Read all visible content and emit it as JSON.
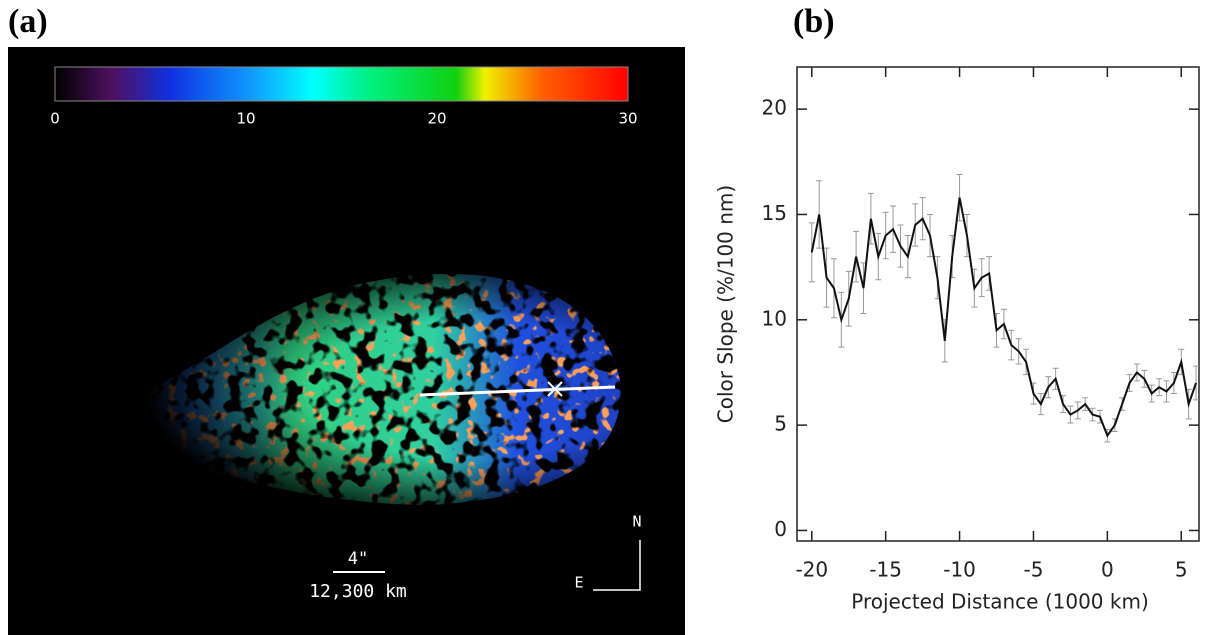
{
  "chart_data": [
    {
      "type": "image",
      "label": "(a)",
      "xlim": [
        0,
        30
      ],
      "xticks": [
        0,
        10,
        20,
        30
      ],
      "scale_bar": {
        "angle": "4\"",
        "length": "12,300 km"
      },
      "compass": {
        "north": "N",
        "east": "E"
      }
    },
    {
      "type": "line",
      "label": "(b)",
      "xlabel": "Projected Distance (1000 km)",
      "ylabel": "Color Slope (%/100 nm)",
      "xlim": [
        -21,
        6.2
      ],
      "ylim": [
        -0.5,
        22
      ],
      "xticks": [
        -20,
        -15,
        -10,
        -5,
        0,
        5
      ],
      "yticks": [
        0,
        5,
        10,
        15,
        20
      ],
      "x": [
        -20,
        -19.5,
        -19,
        -18.5,
        -18,
        -17.5,
        -17,
        -16.5,
        -16,
        -15.5,
        -15,
        -14.5,
        -14,
        -13.5,
        -13,
        -12.5,
        -12,
        -11.5,
        -11,
        -10.5,
        -10,
        -9.5,
        -9,
        -8.5,
        -8,
        -7.5,
        -7,
        -6.5,
        -6,
        -5.5,
        -5,
        -4.5,
        -4,
        -3.5,
        -3,
        -2.5,
        -2,
        -1.5,
        -1,
        -0.5,
        0,
        0.5,
        1,
        1.5,
        2,
        2.5,
        3,
        3.5,
        4,
        4.5,
        5,
        5.5,
        6
      ],
      "series": [
        {
          "color": "#111111",
          "error_color": "#999999",
          "values": [
            13.2,
            15.0,
            12.0,
            11.5,
            10.0,
            11.0,
            13.0,
            11.5,
            14.8,
            13.0,
            14.0,
            14.3,
            13.5,
            13.0,
            14.5,
            14.8,
            14.0,
            12.0,
            9.0,
            13.0,
            15.8,
            14.0,
            11.5,
            12.0,
            12.2,
            9.5,
            9.8,
            8.8,
            8.5,
            8.0,
            6.5,
            6.0,
            6.8,
            7.2,
            6.0,
            5.5,
            5.7,
            6.0,
            5.5,
            5.4,
            4.5,
            5.0,
            6.0,
            7.0,
            7.5,
            7.2,
            6.5,
            6.8,
            6.6,
            7.0,
            8.0,
            6.0,
            7.0
          ],
          "errors": [
            1.4,
            1.6,
            1.4,
            1.4,
            1.3,
            1.3,
            1.2,
            1.2,
            1.2,
            1.1,
            1.1,
            1.1,
            1.0,
            1.0,
            1.0,
            1.0,
            1.0,
            1.0,
            1.0,
            1.0,
            1.1,
            1.0,
            0.9,
            0.9,
            0.8,
            0.8,
            0.7,
            0.7,
            0.6,
            0.6,
            0.5,
            0.5,
            0.5,
            0.5,
            0.4,
            0.4,
            0.4,
            0.3,
            0.3,
            0.3,
            0.3,
            0.3,
            0.3,
            0.4,
            0.4,
            0.4,
            0.4,
            0.4,
            0.5,
            0.5,
            0.6,
            0.7,
            0.8
          ]
        }
      ]
    }
  ]
}
